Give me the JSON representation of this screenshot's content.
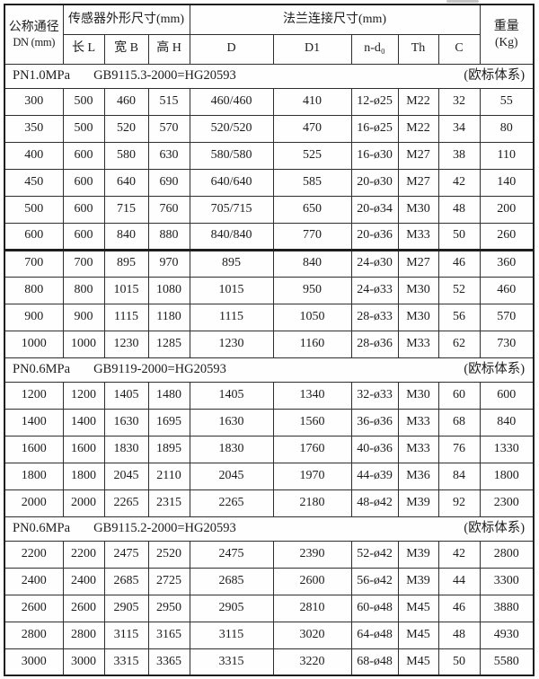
{
  "table": {
    "header": {
      "dn_line1": "公称通径",
      "dn_line2": "DN (mm)",
      "group_sensor": "传感器外形尺寸(mm)",
      "group_flange": "法兰连接尺寸(mm)",
      "weight_line1": "重量",
      "weight_line2": "(Kg)",
      "sub_labels": [
        "长 L",
        "宽 B",
        "高 H",
        "D",
        "D1",
        "n-d₀",
        "Th",
        "C"
      ]
    },
    "sections": [
      {
        "pressure": "PN1.0MPa",
        "standard": "GB9115.3-2000=HG20593",
        "note": "(欧标体系)",
        "rows": [
          [
            "300",
            "500",
            "460",
            "515",
            "460/460",
            "410",
            "12-ø25",
            "M22",
            "32",
            "55"
          ],
          [
            "350",
            "500",
            "520",
            "570",
            "520/520",
            "470",
            "16-ø25",
            "M22",
            "34",
            "80"
          ],
          [
            "400",
            "600",
            "580",
            "630",
            "580/580",
            "525",
            "16-ø30",
            "M27",
            "38",
            "110"
          ],
          [
            "450",
            "600",
            "640",
            "690",
            "640/640",
            "585",
            "20-ø30",
            "M27",
            "42",
            "140"
          ],
          [
            "500",
            "600",
            "715",
            "760",
            "705/715",
            "650",
            "20-ø34",
            "M30",
            "48",
            "200"
          ],
          [
            "600",
            "600",
            "840",
            "880",
            "840/840",
            "770",
            "20-ø36",
            "M33",
            "50",
            "260"
          ],
          [
            "700",
            "700",
            "895",
            "970",
            "895",
            "840",
            "24-ø30",
            "M27",
            "46",
            "360"
          ],
          [
            "800",
            "800",
            "1015",
            "1080",
            "1015",
            "950",
            "24-ø33",
            "M30",
            "52",
            "460"
          ],
          [
            "900",
            "900",
            "1115",
            "1180",
            "1115",
            "1050",
            "28-ø33",
            "M30",
            "56",
            "570"
          ],
          [
            "1000",
            "1000",
            "1230",
            "1285",
            "1230",
            "1160",
            "28-ø36",
            "M33",
            "62",
            "730"
          ]
        ]
      },
      {
        "pressure": "PN0.6MPa",
        "standard": "GB9119-2000=HG20593",
        "note": "(欧标体系)",
        "rows": [
          [
            "1200",
            "1200",
            "1405",
            "1480",
            "1405",
            "1340",
            "32-ø33",
            "M30",
            "60",
            "600"
          ],
          [
            "1400",
            "1400",
            "1630",
            "1695",
            "1630",
            "1560",
            "36-ø36",
            "M33",
            "68",
            "840"
          ],
          [
            "1600",
            "1600",
            "1830",
            "1895",
            "1830",
            "1760",
            "40-ø36",
            "M33",
            "76",
            "1330"
          ],
          [
            "1800",
            "1800",
            "2045",
            "2110",
            "2045",
            "1970",
            "44-ø39",
            "M36",
            "84",
            "1800"
          ],
          [
            "2000",
            "2000",
            "2265",
            "2315",
            "2265",
            "2180",
            "48-ø42",
            "M39",
            "92",
            "2300"
          ]
        ]
      },
      {
        "pressure": "PN0.6MPa",
        "standard": "GB9115.2-2000=HG20593",
        "note": "(欧标体系)",
        "rows": [
          [
            "2200",
            "2200",
            "2475",
            "2520",
            "2475",
            "2390",
            "52-ø42",
            "M39",
            "42",
            "2800"
          ],
          [
            "2400",
            "2400",
            "2685",
            "2725",
            "2685",
            "2600",
            "56-ø42",
            "M39",
            "44",
            "3300"
          ],
          [
            "2600",
            "2600",
            "2905",
            "2950",
            "2905",
            "2810",
            "60-ø48",
            "M45",
            "46",
            "3880"
          ],
          [
            "2800",
            "2800",
            "3115",
            "3165",
            "3115",
            "3020",
            "64-ø48",
            "M45",
            "48",
            "4930"
          ],
          [
            "3000",
            "3000",
            "3315",
            "3365",
            "3315",
            "3220",
            "68-ø48",
            "M45",
            "50",
            "5580"
          ]
        ]
      }
    ]
  }
}
